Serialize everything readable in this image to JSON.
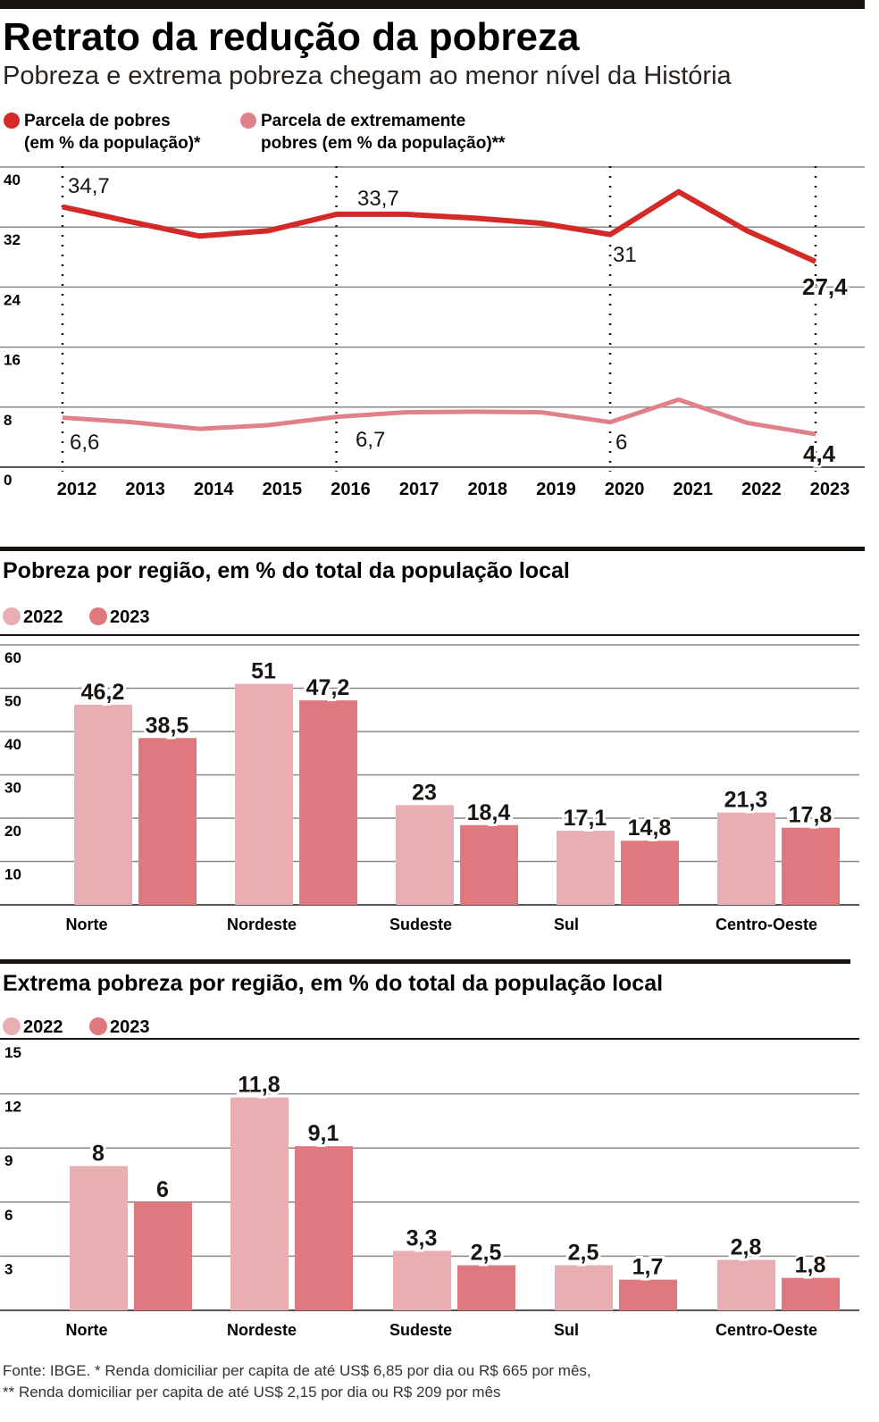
{
  "header": {
    "title": "Retrato da redução da pobreza",
    "subtitle": "Pobreza e extrema pobreza chegam ao menor nível da História"
  },
  "colors": {
    "poor": "#d42a27",
    "extreme": "#e0808a",
    "bar2022": "#e8aeb1",
    "bar2023": "#e07880"
  },
  "chart_data": [
    {
      "type": "line",
      "legend": [
        "Parcela de pobres (em % da população)*",
        "Parcela de extremamente pobres (em % da população)**"
      ],
      "legend_lines": [
        [
          "Parcela de pobres",
          "(em % da população)*"
        ],
        [
          "Parcela de extremamente",
          "pobres (em % da população)**"
        ]
      ],
      "x": [
        "2012",
        "2013",
        "2014",
        "2015",
        "2016",
        "2017",
        "2018",
        "2019",
        "2020",
        "2021",
        "2022",
        "2023"
      ],
      "yticks": [
        "0",
        "8",
        "16",
        "24",
        "32",
        "40"
      ],
      "ylim": [
        0,
        40
      ],
      "grid": true,
      "series": [
        {
          "name": "Parcela de pobres (em % da população)*",
          "values": [
            34.7,
            32.7,
            30.8,
            31.5,
            33.7,
            33.7,
            33.2,
            32.5,
            31.0,
            36.7,
            31.5,
            27.4
          ],
          "labels": {
            "0": "34,7",
            "4": "33,7",
            "8": "31",
            "11": "27,4"
          }
        },
        {
          "name": "Parcela de extremamente pobres (em % da população)**",
          "values": [
            6.6,
            6.0,
            5.1,
            5.6,
            6.7,
            7.3,
            7.4,
            7.3,
            6.0,
            9.0,
            5.9,
            4.4
          ],
          "labels": {
            "0": "6,6",
            "4": "6,7",
            "8": "6",
            "11": "4,4"
          }
        }
      ]
    },
    {
      "type": "bar",
      "title": "Pobreza por região, em % do total da população local",
      "categories": [
        "Norte",
        "Nordeste",
        "Sudeste",
        "Sul",
        "Centro-Oeste"
      ],
      "yticks": [
        "10",
        "20",
        "30",
        "40",
        "50",
        "60"
      ],
      "ylim": [
        0,
        60
      ],
      "series": [
        {
          "name": "2022",
          "values": [
            46.2,
            51,
            23,
            17.1,
            21.3
          ],
          "labels": [
            "46,2",
            "51",
            "23",
            "17,1",
            "21,3"
          ]
        },
        {
          "name": "2023",
          "values": [
            38.5,
            47.2,
            18.4,
            14.8,
            17.8
          ],
          "labels": [
            "38,5",
            "47,2",
            "18,4",
            "14,8",
            "17,8"
          ]
        }
      ]
    },
    {
      "type": "bar",
      "title": "Extrema pobreza por região, em % do total da população local",
      "categories": [
        "Norte",
        "Nordeste",
        "Sudeste",
        "Sul",
        "Centro-Oeste"
      ],
      "yticks": [
        "3",
        "6",
        "9",
        "12",
        "15"
      ],
      "ylim": [
        0,
        15
      ],
      "series": [
        {
          "name": "2022",
          "values": [
            8,
            11.8,
            3.3,
            2.5,
            2.8
          ],
          "labels": [
            "8",
            "11,8",
            "3,3",
            "2,5",
            "2,8"
          ]
        },
        {
          "name": "2023",
          "values": [
            6,
            9.1,
            2.5,
            1.7,
            1.8
          ],
          "labels": [
            "6",
            "9,1",
            "2,5",
            "1,7",
            "1,8"
          ]
        }
      ]
    }
  ],
  "footnote": [
    "Fonte: IBGE. * Renda domiciliar per capita de até US$ 6,85 por dia ou R$ 665 por mês,",
    "** Renda domiciliar per capita de até US$ 2,15 por dia ou R$ 209 por mês"
  ]
}
